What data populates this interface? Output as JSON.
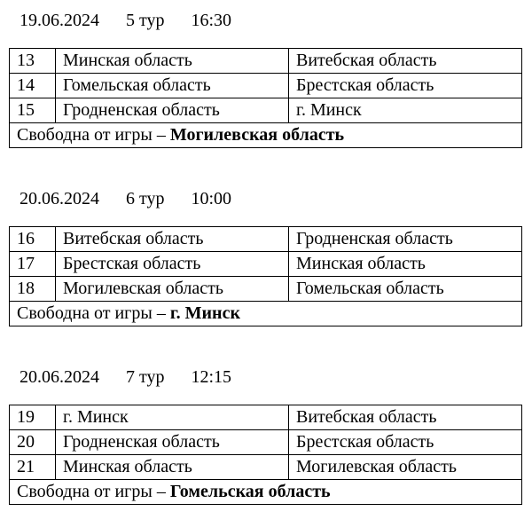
{
  "sections": [
    {
      "date": "19.06.2024",
      "round": "5 тур",
      "time": "16:30",
      "games": [
        {
          "num": "13",
          "home": "Минская область",
          "away": "Витебская область"
        },
        {
          "num": "14",
          "home": "Гомельская область",
          "away": "Брестская область"
        },
        {
          "num": "15",
          "home": "Гродненская область",
          "away": "г. Минск"
        }
      ],
      "bye_label": "Свободна от игры –",
      "bye_team": "Могилевская область"
    },
    {
      "date": "20.06.2024",
      "round": "6 тур",
      "time": "10:00",
      "games": [
        {
          "num": "16",
          "home": "Витебская область",
          "away": "Гродненская область"
        },
        {
          "num": "17",
          "home": "Брестская область",
          "away": "Минская область"
        },
        {
          "num": "18",
          "home": "Могилевская область",
          "away": "Гомельская область"
        }
      ],
      "bye_label": "Свободна от игры –",
      "bye_team": "г. Минск"
    },
    {
      "date": "20.06.2024",
      "round": "7 тур",
      "time": "12:15",
      "games": [
        {
          "num": "19",
          "home": "г. Минск",
          "away": "Витебская область"
        },
        {
          "num": "20",
          "home": "Гродненская область",
          "away": "Брестская область"
        },
        {
          "num": "21",
          "home": "Минская область",
          "away": "Могилевская область"
        }
      ],
      "bye_label": "Свободна от игры –",
      "bye_team": "Гомельская область"
    }
  ],
  "colors": {
    "text": "#000000",
    "background": "#ffffff",
    "border": "#000000"
  }
}
